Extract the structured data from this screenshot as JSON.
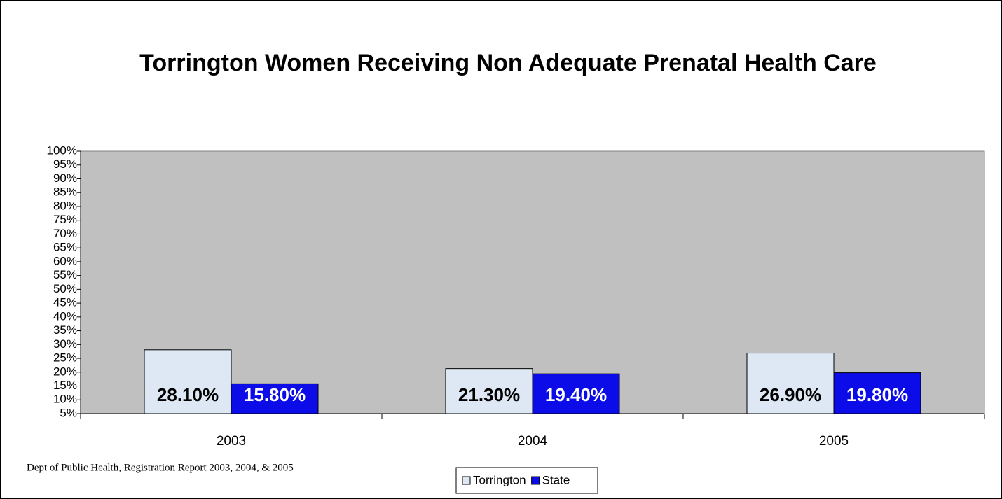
{
  "chart_data": {
    "type": "bar",
    "title": "Torrington Women Receiving Non Adequate Prenatal Health Care",
    "categories": [
      "2003",
      "2004",
      "2005"
    ],
    "series": [
      {
        "name": "Torrington",
        "color": "#dde8f4",
        "label_color": "#000000",
        "values": [
          28.1,
          21.3,
          26.9
        ],
        "value_labels": [
          "28.10%",
          "21.30%",
          "26.90%"
        ]
      },
      {
        "name": "State",
        "color": "#0c0ce8",
        "label_color": "#ffffff",
        "values": [
          15.8,
          19.4,
          19.8
        ],
        "value_labels": [
          "15.80%",
          "19.40%",
          "19.80%"
        ]
      }
    ],
    "ylim": [
      5,
      100
    ],
    "yticks": [
      {
        "value": 5,
        "label": "5%"
      },
      {
        "value": 10,
        "label": "10%"
      },
      {
        "value": 15,
        "label": "15%"
      },
      {
        "value": 20,
        "label": "20%"
      },
      {
        "value": 25,
        "label": "25%"
      },
      {
        "value": 30,
        "label": "30%"
      },
      {
        "value": 35,
        "label": "35%"
      },
      {
        "value": 40,
        "label": "40%"
      },
      {
        "value": 45,
        "label": "45%"
      },
      {
        "value": 50,
        "label": "50%"
      },
      {
        "value": 55,
        "label": "55%"
      },
      {
        "value": 60,
        "label": "60%"
      },
      {
        "value": 65,
        "label": "65%"
      },
      {
        "value": 70,
        "label": "70%"
      },
      {
        "value": 75,
        "label": "75%"
      },
      {
        "value": 80,
        "label": "80%"
      },
      {
        "value": 85,
        "label": "85%"
      },
      {
        "value": 90,
        "label": "90%"
      },
      {
        "value": 95,
        "label": "95%"
      },
      {
        "value": 100,
        "label": "100%"
      }
    ],
    "plot_background": "#c0c0c0",
    "grid": false,
    "legend": "bottom",
    "source": "Dept of Public Health, Registration Report 2003, 2004, & 2005"
  }
}
